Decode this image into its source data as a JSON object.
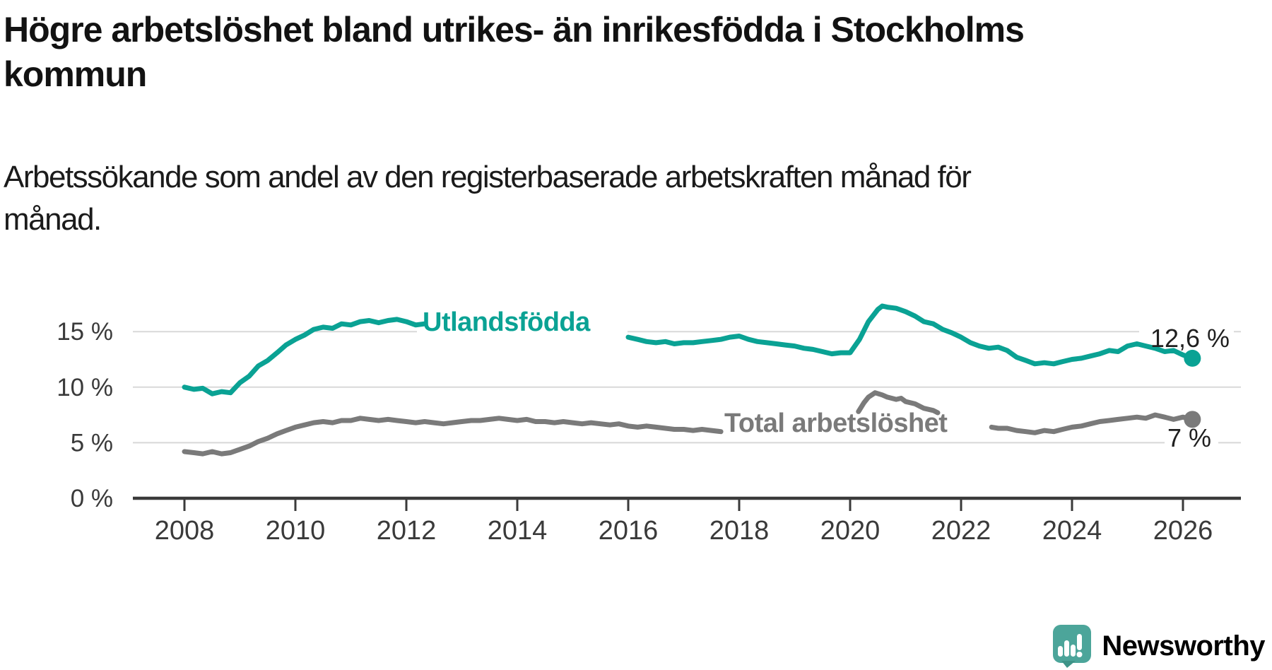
{
  "header": {
    "title": "Högre arbetslöshet bland utrikes- än inrikesfödda i Stockholms kommun",
    "subtitle": "Arbetssökande som andel av den registerbaserade arbetskraften månad för månad."
  },
  "branding": {
    "name": "Newsworthy",
    "icon": "newsworthy-speech-bubble-bar-chart-icon"
  },
  "colors": {
    "teal": "#0aa294",
    "gray": "#7a7a7a",
    "grid": "#d8d8d8",
    "axis": "#3a3a3a",
    "tick_text": "#3a3a3a",
    "end_label_text": "#1f1f1f",
    "logo_bubble": "#4ca59a",
    "logo_tail": "#3e9488",
    "logo_text": "#3aa092"
  },
  "chart_data": {
    "type": "line",
    "unit": "%",
    "grid": true,
    "x_axis": {
      "ticks": [
        2008,
        2010,
        2012,
        2014,
        2016,
        2018,
        2020,
        2022,
        2024,
        2026
      ],
      "tick_labels": [
        "2008",
        "2010",
        "2012",
        "2014",
        "2016",
        "2018",
        "2020",
        "2022",
        "2024",
        "2026"
      ],
      "range": [
        2007.07,
        2027.04
      ]
    },
    "y_axis": {
      "ticks": [
        {
          "value": 0,
          "label": "0 %"
        },
        {
          "value": 5,
          "label": "5 %"
        },
        {
          "value": 10,
          "label": "10 %"
        },
        {
          "value": 15,
          "label": "15 %"
        }
      ],
      "range": [
        0,
        17.8
      ]
    },
    "series": [
      {
        "name": "Utlandsfödda",
        "color": "#0aa294",
        "end_label": "12,6 %",
        "last_point": {
          "x": 2026.17,
          "y": 12.6
        },
        "segments": [
          [
            [
              2008.0,
              10.0
            ],
            [
              2008.17,
              9.8
            ],
            [
              2008.33,
              9.9
            ],
            [
              2008.5,
              9.4
            ],
            [
              2008.67,
              9.6
            ],
            [
              2008.83,
              9.5
            ],
            [
              2009.0,
              10.4
            ],
            [
              2009.17,
              11.0
            ],
            [
              2009.33,
              11.9
            ],
            [
              2009.5,
              12.4
            ],
            [
              2009.67,
              13.1
            ],
            [
              2009.83,
              13.8
            ],
            [
              2010.0,
              14.3
            ],
            [
              2010.17,
              14.7
            ],
            [
              2010.33,
              15.2
            ],
            [
              2010.5,
              15.4
            ],
            [
              2010.67,
              15.3
            ],
            [
              2010.83,
              15.7
            ],
            [
              2011.0,
              15.6
            ],
            [
              2011.17,
              15.9
            ],
            [
              2011.33,
              16.0
            ],
            [
              2011.5,
              15.8
            ],
            [
              2011.67,
              16.0
            ],
            [
              2011.83,
              16.1
            ],
            [
              2012.0,
              15.9
            ],
            [
              2012.17,
              15.6
            ],
            [
              2012.33,
              15.7
            ]
          ],
          [
            [
              2016.0,
              14.5
            ],
            [
              2016.17,
              14.3
            ],
            [
              2016.33,
              14.1
            ],
            [
              2016.5,
              14.0
            ],
            [
              2016.67,
              14.1
            ],
            [
              2016.83,
              13.9
            ],
            [
              2017.0,
              14.0
            ],
            [
              2017.17,
              14.0
            ],
            [
              2017.33,
              14.1
            ],
            [
              2017.5,
              14.2
            ],
            [
              2017.67,
              14.3
            ],
            [
              2017.83,
              14.5
            ],
            [
              2018.0,
              14.6
            ],
            [
              2018.17,
              14.3
            ],
            [
              2018.33,
              14.1
            ],
            [
              2018.5,
              14.0
            ],
            [
              2018.67,
              13.9
            ],
            [
              2018.83,
              13.8
            ],
            [
              2019.0,
              13.7
            ],
            [
              2019.17,
              13.5
            ],
            [
              2019.33,
              13.4
            ],
            [
              2019.5,
              13.2
            ],
            [
              2019.67,
              13.0
            ],
            [
              2019.83,
              13.1
            ],
            [
              2020.0,
              13.1
            ],
            [
              2020.17,
              14.3
            ],
            [
              2020.33,
              15.9
            ],
            [
              2020.5,
              17.0
            ],
            [
              2020.58,
              17.3
            ],
            [
              2020.67,
              17.2
            ],
            [
              2020.83,
              17.1
            ],
            [
              2021.0,
              16.8
            ],
            [
              2021.17,
              16.4
            ],
            [
              2021.33,
              15.9
            ],
            [
              2021.5,
              15.7
            ],
            [
              2021.67,
              15.2
            ],
            [
              2021.83,
              14.9
            ],
            [
              2022.0,
              14.5
            ],
            [
              2022.17,
              14.0
            ],
            [
              2022.33,
              13.7
            ],
            [
              2022.5,
              13.5
            ],
            [
              2022.67,
              13.6
            ],
            [
              2022.83,
              13.3
            ],
            [
              2023.0,
              12.7
            ],
            [
              2023.17,
              12.4
            ],
            [
              2023.33,
              12.1
            ],
            [
              2023.5,
              12.2
            ],
            [
              2023.67,
              12.1
            ],
            [
              2023.83,
              12.3
            ],
            [
              2024.0,
              12.5
            ],
            [
              2024.17,
              12.6
            ],
            [
              2024.33,
              12.8
            ],
            [
              2024.5,
              13.0
            ],
            [
              2024.67,
              13.3
            ],
            [
              2024.83,
              13.2
            ],
            [
              2025.0,
              13.7
            ],
            [
              2025.17,
              13.9
            ],
            [
              2025.33,
              13.7
            ],
            [
              2025.5,
              13.5
            ],
            [
              2025.67,
              13.2
            ],
            [
              2025.83,
              13.3
            ],
            [
              2026.0,
              12.9
            ],
            [
              2026.17,
              12.6
            ]
          ]
        ]
      },
      {
        "name": "Total arbetslöshet",
        "color": "#7a7a7a",
        "end_label": "7 %",
        "last_point": {
          "x": 2026.17,
          "y": 7.1
        },
        "segments": [
          [
            [
              2008.0,
              4.2
            ],
            [
              2008.17,
              4.1
            ],
            [
              2008.33,
              4.0
            ],
            [
              2008.5,
              4.2
            ],
            [
              2008.67,
              4.0
            ],
            [
              2008.83,
              4.1
            ],
            [
              2009.0,
              4.4
            ],
            [
              2009.17,
              4.7
            ],
            [
              2009.33,
              5.1
            ],
            [
              2009.5,
              5.4
            ],
            [
              2009.67,
              5.8
            ],
            [
              2009.83,
              6.1
            ],
            [
              2010.0,
              6.4
            ],
            [
              2010.17,
              6.6
            ],
            [
              2010.33,
              6.8
            ],
            [
              2010.5,
              6.9
            ],
            [
              2010.67,
              6.8
            ],
            [
              2010.83,
              7.0
            ],
            [
              2011.0,
              7.0
            ],
            [
              2011.17,
              7.2
            ],
            [
              2011.33,
              7.1
            ],
            [
              2011.5,
              7.0
            ],
            [
              2011.67,
              7.1
            ],
            [
              2011.83,
              7.0
            ],
            [
              2012.0,
              6.9
            ],
            [
              2012.17,
              6.8
            ],
            [
              2012.33,
              6.9
            ],
            [
              2012.5,
              6.8
            ],
            [
              2012.67,
              6.7
            ],
            [
              2012.83,
              6.8
            ],
            [
              2013.0,
              6.9
            ],
            [
              2013.17,
              7.0
            ],
            [
              2013.33,
              7.0
            ],
            [
              2013.5,
              7.1
            ],
            [
              2013.67,
              7.2
            ],
            [
              2013.83,
              7.1
            ],
            [
              2014.0,
              7.0
            ],
            [
              2014.17,
              7.1
            ],
            [
              2014.33,
              6.9
            ],
            [
              2014.5,
              6.9
            ],
            [
              2014.67,
              6.8
            ],
            [
              2014.83,
              6.9
            ],
            [
              2015.0,
              6.8
            ],
            [
              2015.17,
              6.7
            ],
            [
              2015.33,
              6.8
            ],
            [
              2015.5,
              6.7
            ],
            [
              2015.67,
              6.6
            ],
            [
              2015.83,
              6.7
            ],
            [
              2016.0,
              6.5
            ],
            [
              2016.17,
              6.4
            ],
            [
              2016.33,
              6.5
            ],
            [
              2016.5,
              6.4
            ],
            [
              2016.67,
              6.3
            ],
            [
              2016.83,
              6.2
            ],
            [
              2017.0,
              6.2
            ],
            [
              2017.17,
              6.1
            ],
            [
              2017.33,
              6.2
            ],
            [
              2017.5,
              6.1
            ],
            [
              2017.67,
              6.0
            ]
          ],
          [
            [
              2020.15,
              7.8
            ],
            [
              2020.25,
              8.6
            ],
            [
              2020.33,
              9.1
            ],
            [
              2020.45,
              9.5
            ],
            [
              2020.58,
              9.3
            ],
            [
              2020.67,
              9.1
            ],
            [
              2020.83,
              8.9
            ],
            [
              2020.92,
              9.0
            ],
            [
              2021.0,
              8.7
            ],
            [
              2021.17,
              8.5
            ],
            [
              2021.33,
              8.1
            ],
            [
              2021.5,
              7.9
            ],
            [
              2021.58,
              7.7
            ]
          ],
          [
            [
              2022.55,
              6.4
            ],
            [
              2022.67,
              6.3
            ],
            [
              2022.83,
              6.3
            ],
            [
              2023.0,
              6.1
            ],
            [
              2023.17,
              6.0
            ],
            [
              2023.33,
              5.9
            ],
            [
              2023.5,
              6.1
            ],
            [
              2023.67,
              6.0
            ],
            [
              2023.83,
              6.2
            ],
            [
              2024.0,
              6.4
            ],
            [
              2024.17,
              6.5
            ],
            [
              2024.33,
              6.7
            ],
            [
              2024.5,
              6.9
            ],
            [
              2024.67,
              7.0
            ],
            [
              2024.83,
              7.1
            ],
            [
              2025.0,
              7.2
            ],
            [
              2025.17,
              7.3
            ],
            [
              2025.33,
              7.2
            ],
            [
              2025.5,
              7.5
            ],
            [
              2025.67,
              7.3
            ],
            [
              2025.83,
              7.1
            ],
            [
              2026.0,
              7.3
            ],
            [
              2026.17,
              7.1
            ]
          ]
        ]
      }
    ]
  }
}
